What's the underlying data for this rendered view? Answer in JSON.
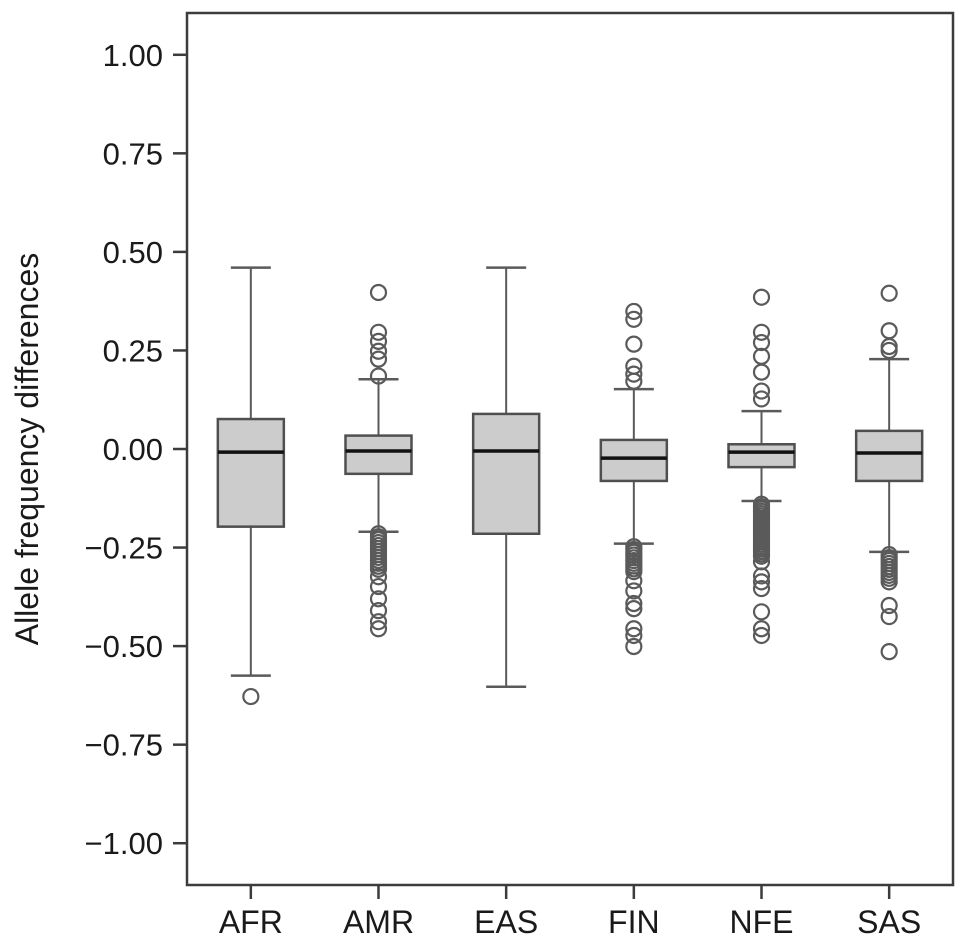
{
  "chart_data": {
    "type": "boxplot",
    "title": "",
    "xlabel": "",
    "ylabel": "Allele frequency differences",
    "categories": [
      "AFR",
      "AMR",
      "EAS",
      "FIN",
      "NFE",
      "SAS"
    ],
    "y_ticks": [
      {
        "label": "1.00",
        "value": 1.0
      },
      {
        "label": "0.75",
        "value": 0.75
      },
      {
        "label": "0.50",
        "value": 0.5
      },
      {
        "label": "0.25",
        "value": 0.25
      },
      {
        "label": "0.00",
        "value": 0.0
      },
      {
        "label": "−0.25",
        "value": -0.25
      },
      {
        "label": "−0.50",
        "value": -0.5
      },
      {
        "label": "−0.75",
        "value": -0.75
      },
      {
        "label": "−1.00",
        "value": -1.0
      }
    ],
    "ylim": [
      -1.106,
      1.106
    ],
    "grid": false,
    "legend": "none",
    "series": [
      {
        "name": "AFR",
        "whisker_low": -0.575,
        "q1": -0.197,
        "median": -0.008,
        "q3": 0.076,
        "whisker_high": 0.46,
        "outliers": [
          -0.628
        ]
      },
      {
        "name": "AMR",
        "whisker_low": -0.21,
        "q1": -0.063,
        "median": -0.005,
        "q3": 0.034,
        "whisker_high": 0.177,
        "outliers": [
          0.397,
          0.296,
          0.273,
          0.248,
          0.228,
          0.185,
          -0.215,
          -0.2225,
          -0.23,
          -0.2375,
          -0.245,
          -0.2525,
          -0.26,
          -0.2675,
          -0.275,
          -0.2825,
          -0.29,
          -0.2975,
          -0.305,
          -0.324,
          -0.349,
          -0.38,
          -0.41,
          -0.438,
          -0.456
        ]
      },
      {
        "name": "EAS",
        "whisker_low": -0.603,
        "q1": -0.215,
        "median": -0.005,
        "q3": 0.089,
        "whisker_high": 0.46,
        "outliers": []
      },
      {
        "name": "FIN",
        "whisker_low": -0.24,
        "q1": -0.081,
        "median": -0.023,
        "q3": 0.023,
        "whisker_high": 0.152,
        "outliers": [
          0.349,
          0.329,
          0.266,
          0.21,
          0.19,
          0.172,
          -0.248,
          -0.255,
          -0.262,
          -0.269,
          -0.276,
          -0.283,
          -0.29,
          -0.297,
          -0.304,
          -0.311,
          -0.334,
          -0.36,
          -0.392,
          -0.405,
          -0.456,
          -0.473,
          -0.501
        ]
      },
      {
        "name": "NFE",
        "whisker_low": -0.132,
        "q1": -0.046,
        "median": -0.008,
        "q3": 0.012,
        "whisker_high": 0.096,
        "outliers": [
          0.385,
          0.296,
          0.27,
          0.235,
          0.195,
          0.147,
          0.127,
          -0.14,
          -0.146,
          -0.152,
          -0.158,
          -0.164,
          -0.17,
          -0.176,
          -0.182,
          -0.188,
          -0.194,
          -0.2,
          -0.206,
          -0.212,
          -0.218,
          -0.224,
          -0.23,
          -0.236,
          -0.242,
          -0.248,
          -0.254,
          -0.26,
          -0.266,
          -0.272,
          -0.286,
          -0.322,
          -0.337,
          -0.354,
          -0.413,
          -0.456,
          -0.473
        ]
      },
      {
        "name": "SAS",
        "whisker_low": -0.261,
        "q1": -0.081,
        "median": -0.01,
        "q3": 0.046,
        "whisker_high": 0.228,
        "outliers": [
          0.395,
          0.3,
          0.26,
          0.25,
          -0.268,
          -0.2755,
          -0.283,
          -0.2905,
          -0.298,
          -0.3055,
          -0.313,
          -0.3205,
          -0.328,
          -0.337,
          -0.397,
          -0.425,
          -0.514
        ]
      }
    ],
    "colors": {
      "box_fill": "#cccccc",
      "box_stroke": "#4f4f4f",
      "median": "#111111",
      "whisker": "#5a5a5a",
      "outlier_stroke": "#5a5a5a",
      "axis_border": "#3c3c3c",
      "text": "#1a1a1a",
      "background": "#ffffff"
    }
  }
}
